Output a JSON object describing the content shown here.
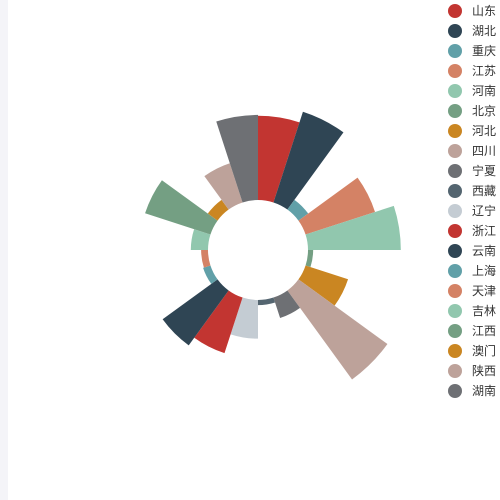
{
  "chart_data": {
    "type": "nightingale-rose",
    "legend_position": "right",
    "categories": [
      "山东",
      "湖北",
      "重庆",
      "江苏",
      "河南",
      "北京",
      "河北",
      "四川",
      "宁夏",
      "西藏",
      "辽宁",
      "浙江",
      "云南",
      "上海",
      "天津",
      "吉林",
      "江西",
      "澳门",
      "陕西",
      "湖南"
    ],
    "slices": [
      {
        "name": "山东",
        "value": 98,
        "color": "#c23531"
      },
      {
        "name": "湖北",
        "value": 111,
        "color": "#2f4554"
      },
      {
        "name": "重庆",
        "value": 14,
        "color": "#61a0a8"
      },
      {
        "name": "江苏",
        "value": 85,
        "color": "#d48265"
      },
      {
        "name": "河南",
        "value": 108,
        "color": "#91c7ae"
      },
      {
        "name": "北京",
        "value": 6,
        "color": "#749f83"
      },
      {
        "name": "河北",
        "value": 52,
        "color": "#ca8622"
      },
      {
        "name": "四川",
        "value": 128,
        "color": "#bda29a"
      },
      {
        "name": "宁夏",
        "value": 25,
        "color": "#6e7074"
      },
      {
        "name": "西藏",
        "value": 6,
        "color": "#546570"
      },
      {
        "name": "辽宁",
        "value": 45,
        "color": "#c4ccd3"
      },
      {
        "name": "浙江",
        "value": 68,
        "color": "#c23531"
      },
      {
        "name": "云南",
        "value": 79,
        "color": "#2f4554"
      },
      {
        "name": "上海",
        "value": 9,
        "color": "#61a0a8"
      },
      {
        "name": "天津",
        "value": 8,
        "color": "#d48265"
      },
      {
        "name": "吉林",
        "value": 20,
        "color": "#91c7ae"
      },
      {
        "name": "江西",
        "value": 80,
        "color": "#749f83"
      },
      {
        "name": "澳门",
        "value": 14,
        "color": "#ca8622"
      },
      {
        "name": "陕西",
        "value": 48,
        "color": "#bda29a"
      },
      {
        "name": "湖南",
        "value": 99,
        "color": "#6e7074"
      }
    ]
  }
}
